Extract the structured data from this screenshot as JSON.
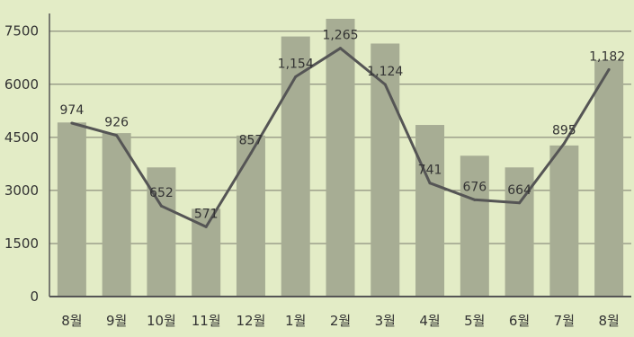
{
  "chart_data": {
    "type": "bar",
    "categories": [
      "8월",
      "9월",
      "10월",
      "11월",
      "12월",
      "1월",
      "2월",
      "3월",
      "4월",
      "5월",
      "6월",
      "7월",
      "8월"
    ],
    "yticks": [
      "0",
      "1500",
      "3000",
      "4500",
      "6000",
      "7500"
    ],
    "ylim": [
      0,
      8000
    ],
    "grid": true,
    "series": [
      {
        "type": "bar",
        "values": [
          4920,
          4620,
          3650,
          2480,
          4550,
          7350,
          7850,
          7150,
          4850,
          3980,
          3650,
          4270,
          6680
        ]
      },
      {
        "type": "line",
        "values": [
          974,
          926,
          652,
          571,
          857,
          1154,
          1265,
          1124,
          741,
          676,
          664,
          895,
          1182
        ],
        "labels": [
          "974",
          "926",
          "652",
          "571",
          "857",
          "1,154",
          "1,265",
          "1,124",
          "741",
          "676",
          "664",
          "895",
          "1,182"
        ],
        "line_range": [
          300,
          1400
        ]
      }
    ],
    "colors": {
      "bar": "#a7ad94",
      "line": "#555555",
      "grid": "#7a7a6e",
      "axis": "#555555",
      "background": "#e3ecc6"
    }
  }
}
